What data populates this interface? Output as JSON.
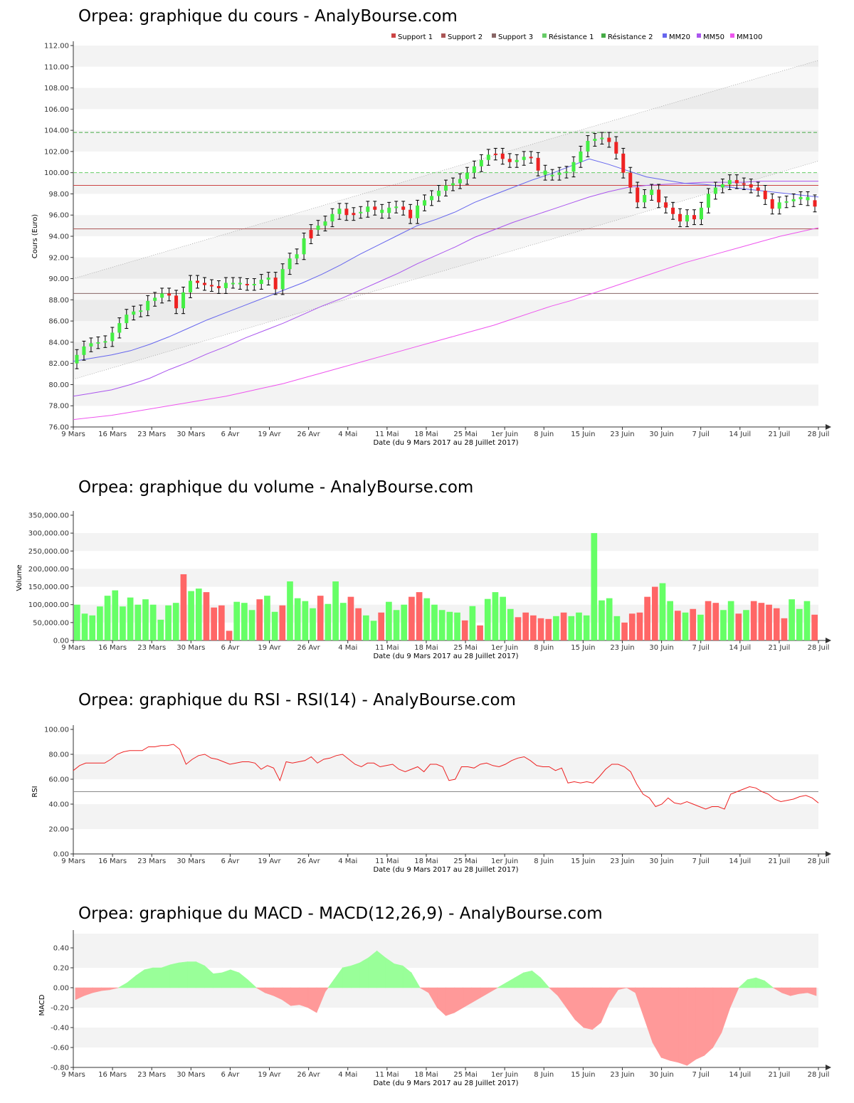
{
  "titles": {
    "price": "Orpea: graphique du cours - AnalyBourse.com",
    "volume": "Orpea: graphique du volume - AnalyBourse.com",
    "rsi": "Orpea: graphique du RSI - RSI(14) - AnalyBourse.com",
    "macd": "Orpea: graphique du MACD - MACD(12,26,9) - AnalyBourse.com"
  },
  "x_axis_label": "Date (du 9 Mars 2017 au 28 Juillet 2017)",
  "x_ticks": [
    "9 Mars",
    "16 Mars",
    "23 Mars",
    "30 Mars",
    "6 Avr",
    "19 Avr",
    "26 Avr",
    "4 Mai",
    "11 Mai",
    "18 Mai",
    "25 Mai",
    "1er Juin",
    "8 Juin",
    "15 Juin",
    "23 Juin",
    "30 Juin",
    "7 Juil",
    "14 Juil",
    "21 Juil",
    "28 Juil"
  ],
  "colors": {
    "up": "#44ee44",
    "down": "#ee2222",
    "mm20": "#6666ee",
    "mm50": "#aa55ee",
    "mm100": "#ee55ee",
    "support1": "#cc4444",
    "support2": "#aa5555",
    "support3": "#886666",
    "res1": "#66cc66",
    "res2": "#44aa44",
    "vol_up": "#66ff66",
    "vol_down": "#ff6666",
    "rsi": "#ee2222",
    "macd_pos": "#99ff99",
    "macd_neg": "#ff9999"
  },
  "chart_data": [
    {
      "type": "candlestick",
      "title": "Orpea: graphique du cours - AnalyBourse.com",
      "xlabel": "Date (du 9 Mars 2017 au 28 Juillet 2017)",
      "ylabel": "Cours (Euro)",
      "ylim": [
        76,
        112
      ],
      "yticks": [
        "76.00",
        "78.00",
        "80.00",
        "82.00",
        "84.00",
        "86.00",
        "88.00",
        "90.00",
        "92.00",
        "94.00",
        "96.00",
        "98.00",
        "100.00",
        "102.00",
        "104.00",
        "106.00",
        "108.00",
        "110.00",
        "112.00"
      ],
      "legend": [
        "Support 1",
        "Support 2",
        "Support 3",
        "Résistance 1",
        "Résistance 2",
        "MM20",
        "MM50",
        "MM100"
      ],
      "legend_position": "top-right",
      "levels": {
        "support1": 98.8,
        "support2": 94.7,
        "support3": 88.6,
        "resistance1": 100.0,
        "resistance2": 103.8
      },
      "closes": [
        82.8,
        83.6,
        83.9,
        84.0,
        84.1,
        84.9,
        85.8,
        86.6,
        86.9,
        87.0,
        87.9,
        88.2,
        88.6,
        88.4,
        87.2,
        88.7,
        89.8,
        89.6,
        89.4,
        89.3,
        89.1,
        89.6,
        89.6,
        89.5,
        89.4,
        89.5,
        89.9,
        90.1,
        89.0,
        90.9,
        91.9,
        92.3,
        93.8,
        94.6,
        95.0,
        95.4,
        96.1,
        96.6,
        96.0,
        96.2,
        96.3,
        96.8,
        96.5,
        96.2,
        96.7,
        96.8,
        96.5,
        95.7,
        96.9,
        97.4,
        97.8,
        98.3,
        98.8,
        99.0,
        99.4,
        100.0,
        100.6,
        101.2,
        101.7,
        101.8,
        101.3,
        101.0,
        101.2,
        101.5,
        101.4,
        100.2,
        99.8,
        99.8,
        100.0,
        100.1,
        101.0,
        102.0,
        103.0,
        103.2,
        103.3,
        102.9,
        101.8,
        100.0,
        98.6,
        97.2,
        97.9,
        98.4,
        97.2,
        96.7,
        96.1,
        95.4,
        96.0,
        95.6,
        96.7,
        98.0,
        98.6,
        98.9,
        99.3,
        99.0,
        98.9,
        98.6,
        98.3,
        97.5,
        96.6,
        97.2,
        97.3,
        97.5,
        97.7,
        97.4,
        96.8
      ],
      "ups": [
        1,
        1,
        1,
        1,
        1,
        1,
        1,
        1,
        1,
        1,
        1,
        1,
        1,
        0,
        0,
        1,
        1,
        0,
        0,
        0,
        0,
        1,
        1,
        1,
        0,
        1,
        1,
        1,
        0,
        1,
        1,
        1,
        1,
        0,
        1,
        1,
        1,
        1,
        0,
        0,
        1,
        1,
        0,
        1,
        1,
        1,
        0,
        0,
        1,
        1,
        1,
        1,
        1,
        1,
        1,
        1,
        1,
        1,
        1,
        0,
        0,
        0,
        1,
        1,
        0,
        0,
        1,
        1,
        1,
        1,
        1,
        1,
        1,
        1,
        1,
        0,
        0,
        0,
        0,
        0,
        1,
        1,
        0,
        0,
        0,
        0,
        1,
        0,
        1,
        1,
        1,
        1,
        1,
        0,
        0,
        0,
        0,
        0,
        0,
        1,
        1,
        1,
        1,
        1,
        0
      ],
      "mm20": [
        82.2,
        82.5,
        82.8,
        83.2,
        83.8,
        84.5,
        85.3,
        86.1,
        86.8,
        87.5,
        88.2,
        88.9,
        89.6,
        90.4,
        91.3,
        92.3,
        93.2,
        94.1,
        95.0,
        95.6,
        96.3,
        97.2,
        97.9,
        98.6,
        99.3,
        99.9,
        100.6,
        101.3,
        100.8,
        100.2,
        99.6,
        99.3,
        99.0,
        98.9,
        98.7,
        98.5,
        98.3,
        98.1,
        97.9,
        97.7
      ],
      "mm50": [
        78.9,
        79.2,
        79.5,
        80.0,
        80.6,
        81.4,
        82.1,
        82.9,
        83.6,
        84.4,
        85.1,
        85.8,
        86.6,
        87.4,
        88.1,
        88.9,
        89.7,
        90.5,
        91.4,
        92.2,
        93.0,
        93.9,
        94.6,
        95.3,
        95.9,
        96.5,
        97.1,
        97.7,
        98.2,
        98.6,
        98.8,
        98.9,
        99.0,
        99.1,
        99.1,
        99.1,
        99.2,
        99.2,
        99.2,
        99.2
      ],
      "mm100": [
        76.7,
        76.9,
        77.1,
        77.4,
        77.7,
        78.0,
        78.3,
        78.6,
        78.9,
        79.3,
        79.7,
        80.1,
        80.6,
        81.1,
        81.6,
        82.1,
        82.6,
        83.1,
        83.6,
        84.1,
        84.6,
        85.1,
        85.6,
        86.2,
        86.8,
        87.4,
        87.9,
        88.5,
        89.1,
        89.7,
        90.3,
        90.9,
        91.5,
        92.0,
        92.5,
        93.0,
        93.5,
        94.0,
        94.4,
        94.8
      ],
      "channel_upper": [
        90.0,
        110.6
      ],
      "channel_lower": [
        80.5,
        101.1
      ]
    },
    {
      "type": "bar",
      "title": "Orpea: graphique du volume - AnalyBourse.com",
      "xlabel": "Date (du 9 Mars 2017 au 28 Juillet 2017)",
      "ylabel": "Volume",
      "ylim": [
        0,
        350000
      ],
      "yticks": [
        "0.00",
        "50,000.00",
        "100,000.00",
        "150,000.00",
        "200,000.00",
        "250,000.00",
        "300,000.00",
        "350,000.00"
      ],
      "values": [
        100000,
        75000,
        70000,
        95000,
        125000,
        140000,
        95000,
        120000,
        100000,
        115000,
        100000,
        58000,
        98000,
        105000,
        185000,
        138000,
        145000,
        135000,
        92000,
        98000,
        27000,
        108000,
        105000,
        85000,
        115000,
        125000,
        80000,
        98000,
        165000,
        118000,
        110000,
        90000,
        125000,
        102000,
        165000,
        105000,
        122000,
        90000,
        70000,
        55000,
        78000,
        108000,
        85000,
        100000,
        122000,
        135000,
        118000,
        100000,
        85000,
        80000,
        78000,
        56000,
        96000,
        42000,
        116000,
        135000,
        122000,
        88000,
        65000,
        78000,
        70000,
        62000,
        60000,
        68000,
        78000,
        68000,
        78000,
        70000,
        300000,
        112000,
        118000,
        68000,
        50000,
        75000,
        78000,
        122000,
        150000,
        160000,
        110000,
        83000,
        78000,
        88000,
        72000,
        110000,
        105000,
        85000,
        110000,
        75000,
        85000,
        110000,
        105000,
        100000,
        90000,
        62000,
        115000,
        88000,
        110000,
        72000
      ],
      "ups": [
        1,
        1,
        1,
        1,
        1,
        1,
        1,
        1,
        1,
        1,
        1,
        1,
        1,
        1,
        0,
        1,
        1,
        0,
        0,
        0,
        0,
        1,
        1,
        1,
        0,
        1,
        1,
        0,
        1,
        1,
        1,
        1,
        0,
        1,
        1,
        1,
        0,
        0,
        1,
        1,
        0,
        1,
        1,
        1,
        0,
        0,
        1,
        1,
        1,
        1,
        1,
        0,
        1,
        0,
        1,
        1,
        1,
        1,
        0,
        0,
        0,
        0,
        0,
        1,
        0,
        1,
        1,
        1,
        1,
        1,
        1,
        1,
        0,
        0,
        0,
        0,
        0,
        1,
        1,
        0,
        1,
        0,
        1,
        0,
        0,
        1,
        1,
        0,
        1,
        0,
        0,
        0,
        0,
        0,
        1,
        1,
        1,
        0
      ]
    },
    {
      "type": "line",
      "title": "Orpea: graphique du RSI - RSI(14) - AnalyBourse.com",
      "xlabel": "Date (du 9 Mars 2017 au 28 Juillet 2017)",
      "ylabel": "RSI",
      "ylim": [
        0,
        100
      ],
      "yticks": [
        "0.00",
        "20.00",
        "40.00",
        "60.00",
        "80.00",
        "100.00"
      ],
      "reference_line": 50,
      "values": [
        67,
        71,
        73,
        73,
        73,
        73,
        76,
        80,
        82,
        83,
        83,
        83,
        86,
        86,
        87,
        87,
        88,
        84,
        72,
        76,
        79,
        80,
        77,
        76,
        74,
        72,
        73,
        74,
        74,
        73,
        68,
        71,
        69,
        59,
        74,
        73,
        74,
        75,
        78,
        73,
        76,
        77,
        79,
        80,
        76,
        72,
        70,
        73,
        73,
        70,
        71,
        72,
        68,
        66,
        68,
        70,
        66,
        72,
        72,
        70,
        59,
        60,
        70,
        70,
        69,
        72,
        73,
        71,
        70,
        72,
        75,
        77,
        78,
        75,
        71,
        70,
        70,
        67,
        69,
        57,
        58,
        57,
        58,
        57,
        62,
        68,
        72,
        72,
        70,
        66,
        56,
        48,
        45,
        38,
        40,
        45,
        41,
        40,
        42,
        40,
        38,
        36,
        38,
        38,
        36,
        48,
        50,
        52,
        54,
        53,
        50,
        48,
        44,
        42,
        43,
        44,
        46,
        47,
        45,
        41
      ]
    },
    {
      "type": "area",
      "title": "Orpea: graphique du MACD - MACD(12,26,9) - AnalyBourse.com",
      "xlabel": "Date (du 9 Mars 2017 au 28 Juillet 2017)",
      "ylabel": "MACD",
      "ylim": [
        -0.8,
        0.45
      ],
      "yticks": [
        "-0.80",
        "-0.60",
        "-0.40",
        "-0.20",
        "0.00",
        "0.20",
        "0.40"
      ],
      "values": [
        -0.12,
        -0.08,
        -0.05,
        -0.03,
        -0.02,
        0.0,
        0.05,
        0.12,
        0.18,
        0.2,
        0.2,
        0.23,
        0.25,
        0.26,
        0.26,
        0.22,
        0.14,
        0.15,
        0.18,
        0.15,
        0.08,
        0.0,
        -0.05,
        -0.08,
        -0.12,
        -0.18,
        -0.17,
        -0.2,
        -0.25,
        -0.04,
        0.08,
        0.2,
        0.22,
        0.25,
        0.3,
        0.37,
        0.3,
        0.24,
        0.22,
        0.15,
        0.0,
        -0.05,
        -0.2,
        -0.28,
        -0.25,
        -0.2,
        -0.15,
        -0.1,
        -0.05,
        0.0,
        0.05,
        0.1,
        0.15,
        0.17,
        0.1,
        0.0,
        -0.08,
        -0.2,
        -0.32,
        -0.4,
        -0.42,
        -0.35,
        -0.15,
        -0.02,
        0.0,
        -0.05,
        -0.3,
        -0.55,
        -0.7,
        -0.73,
        -0.75,
        -0.78,
        -0.72,
        -0.68,
        -0.6,
        -0.45,
        -0.2,
        0.0,
        0.08,
        0.1,
        0.07,
        0.0,
        -0.05,
        -0.08,
        -0.06,
        -0.05,
        -0.08
      ]
    }
  ]
}
